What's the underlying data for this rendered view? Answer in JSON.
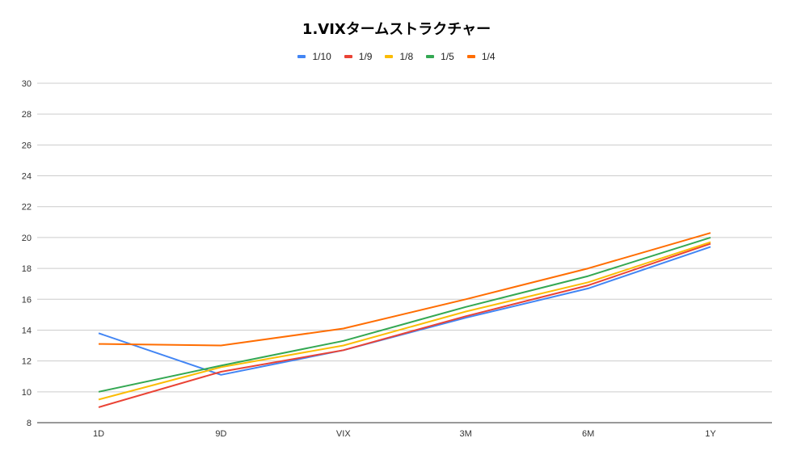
{
  "chart_data": {
    "type": "line",
    "title": "1.VIXタームストラクチャー",
    "xlabel": "",
    "ylabel": "",
    "categories": [
      "1D",
      "9D",
      "VIX",
      "3M",
      "6M",
      "1Y"
    ],
    "ylim": [
      8,
      30
    ],
    "yticks": [
      8,
      10,
      12,
      14,
      16,
      18,
      20,
      22,
      24,
      26,
      28,
      30
    ],
    "grid": true,
    "legend_position": "top",
    "series": [
      {
        "name": "1/10",
        "color": "#4285F4",
        "values": [
          13.8,
          11.1,
          12.7,
          14.8,
          16.7,
          19.4
        ]
      },
      {
        "name": "1/9",
        "color": "#EA4335",
        "values": [
          9.0,
          11.3,
          12.7,
          14.9,
          16.9,
          19.6
        ]
      },
      {
        "name": "1/8",
        "color": "#FBBC04",
        "values": [
          9.5,
          11.6,
          13.0,
          15.2,
          17.1,
          19.7
        ]
      },
      {
        "name": "1/5",
        "color": "#34A853",
        "values": [
          10.0,
          11.7,
          13.3,
          15.5,
          17.5,
          20.0
        ]
      },
      {
        "name": "1/4",
        "color": "#FF6D01",
        "values": [
          13.1,
          13.0,
          14.1,
          16.0,
          18.0,
          20.3
        ]
      }
    ]
  }
}
